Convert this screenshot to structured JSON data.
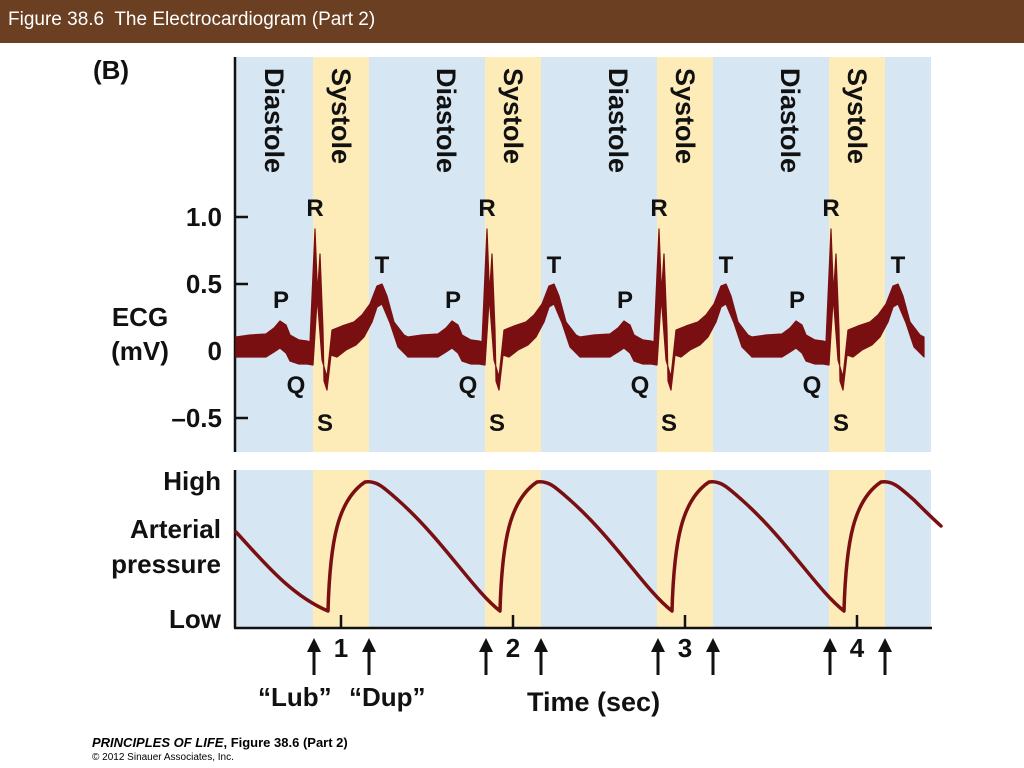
{
  "header": {
    "title": "Figure 38.6  The Electrocardiogram (Part 2)"
  },
  "panel_label": "(B)",
  "phases": {
    "diastole": "Diastole",
    "systole": "Systole"
  },
  "ecg": {
    "axis_label_line1": "ECG",
    "axis_label_line2": "(mV)",
    "ticks": [
      "1.0",
      "0.5",
      "0",
      "–0.5"
    ],
    "tick_values": [
      1.0,
      0.5,
      0,
      -0.5
    ],
    "wave_labels": {
      "p": "P",
      "q": "Q",
      "r": "R",
      "s": "S",
      "t": "T"
    }
  },
  "pressure": {
    "axis_label_line1": "Arterial",
    "axis_label_line2": "pressure",
    "high": "High",
    "low": "Low"
  },
  "time": {
    "beats": [
      "1",
      "2",
      "3",
      "4"
    ],
    "xlabel": "Time (sec)",
    "lub": "“Lub”",
    "dup": "“Dup”"
  },
  "colors": {
    "header": "#6b3f22",
    "diastole_band": "#d6e6f3",
    "systole_band": "#fdebb8",
    "wave": "#7a0f12",
    "text": "#111111"
  },
  "footer": {
    "book": "PRINCIPLES OF LIFE",
    "figure": ", Figure 38.6 (Part 2)",
    "copyright": "© 2012 Sinauer Associates, Inc."
  }
}
